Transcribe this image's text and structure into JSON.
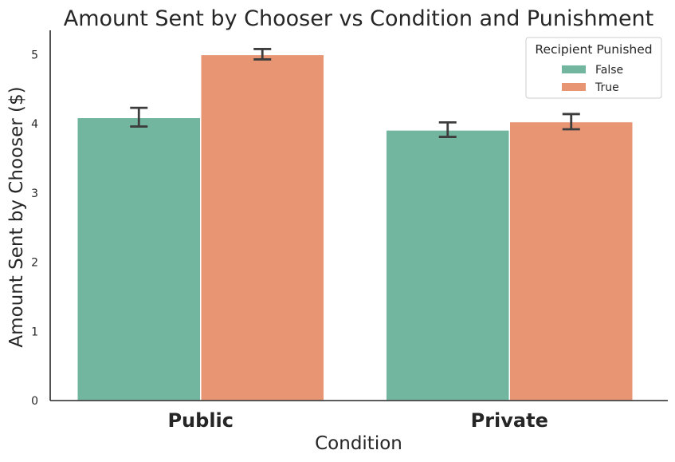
{
  "chart_data": {
    "type": "bar",
    "title": "Amount Sent by Chooser vs Condition and Punishment",
    "xlabel": "Condition",
    "ylabel": "Amount Sent by Chooser ($)",
    "categories": [
      "Public",
      "Private"
    ],
    "series": [
      {
        "name": "False",
        "color": "#73b6a0",
        "values": [
          4.09,
          3.91
        ],
        "err_low": [
          3.96,
          3.81
        ],
        "err_high": [
          4.23,
          4.02
        ]
      },
      {
        "name": "True",
        "color": "#e89574",
        "values": [
          5.0,
          4.03
        ],
        "err_low": [
          4.93,
          3.92
        ],
        "err_high": [
          5.08,
          4.14
        ]
      }
    ],
    "yticks": [
      "0",
      "1",
      "2",
      "3",
      "4",
      "5"
    ],
    "ylim": [
      0,
      5.35
    ],
    "legend": {
      "title": "Recipient Punished",
      "placement": "top-right"
    },
    "grid": false
  }
}
